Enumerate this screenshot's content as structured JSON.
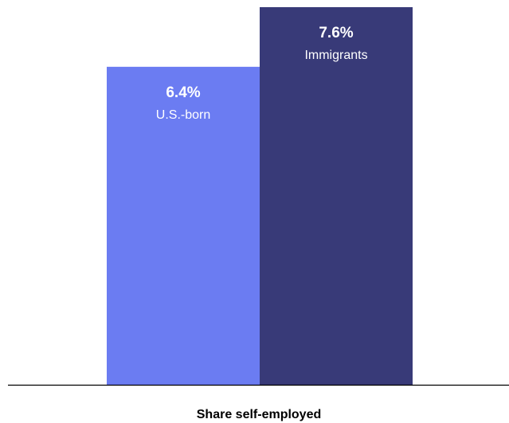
{
  "chart_data": {
    "type": "bar",
    "categories": [
      "U.S.-born",
      "Immigrants"
    ],
    "values": [
      6.4,
      7.6
    ],
    "value_labels": [
      "6.4%",
      "7.6%"
    ],
    "colors": [
      "#6b7cf2",
      "#383a78"
    ],
    "xlabel": "Share self-employed",
    "ylim": [
      0,
      7.6
    ],
    "grid": false
  }
}
